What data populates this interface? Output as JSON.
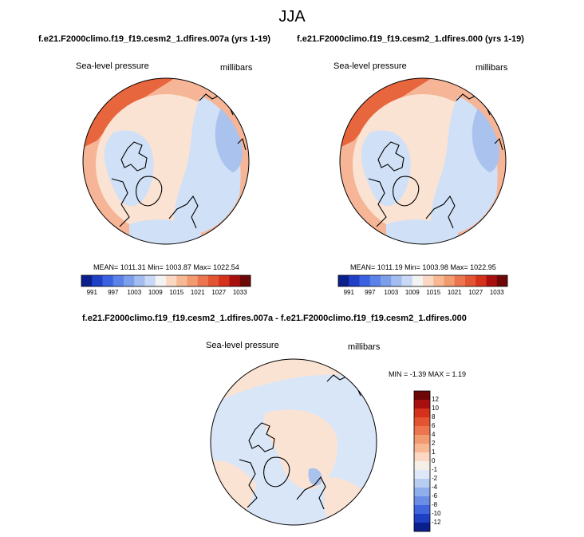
{
  "figure": {
    "title": "JJA",
    "diff_title": "f.e21.F2000climo.f19_f19.cesm2_1.dfires.007a - f.e21.F2000climo.f19_f19.cesm2_1.dfires.000"
  },
  "panels": [
    {
      "case": "f.e21.F2000climo.f19_f19.cesm2_1.dfires.007a (yrs 1-19)",
      "variable": "Sea-level pressure",
      "units": "millibars",
      "stats": "MEAN= 1011.31  Min= 1003.87  Max= 1022.54"
    },
    {
      "case": "f.e21.F2000climo.f19_f19.cesm2_1.dfires.000 (yrs 1-19)",
      "variable": "Sea-level pressure",
      "units": "millibars",
      "stats": "MEAN= 1011.19  Min= 1003.98  Max= 1022.95"
    },
    {
      "variable": "Sea-level pressure",
      "units": "millibars",
      "stats": "MIN =  -1.39 MAX =   1.19"
    }
  ],
  "colorbars": {
    "abs_ticks": [
      "991",
      "997",
      "1003",
      "1009",
      "1015",
      "1021",
      "1027",
      "1033"
    ],
    "abs_colors": [
      "#0a1e8c",
      "#1f3fc4",
      "#3a62e0",
      "#5a82e8",
      "#7d9fea",
      "#a3bdf0",
      "#c8d8f6",
      "#f3f3f3",
      "#fbd8c4",
      "#f8b894",
      "#f29a70",
      "#ec7550",
      "#e35432",
      "#d4301c",
      "#a81010",
      "#6e0808"
    ],
    "diff_ticks": [
      "12",
      "10",
      "8",
      "6",
      "4",
      "2",
      "1",
      "0",
      "-1",
      "-2",
      "-4",
      "-6",
      "-8",
      "-10",
      "-12"
    ],
    "diff_colors": [
      "#6e0808",
      "#a81010",
      "#d4301c",
      "#e35432",
      "#ec7550",
      "#f29a70",
      "#f8b894",
      "#fbd8c4",
      "#f6efe8",
      "#dfe8f8",
      "#b8cdf2",
      "#8eaeec",
      "#6a8ee6",
      "#3f66dc",
      "#1f3fc4",
      "#0a1e8c"
    ]
  },
  "map_colors": {
    "high": "#e8663e",
    "mid_high": "#f6b596",
    "near": "#fbe3d3",
    "low": "#cfe0f7",
    "lower": "#a9c3ee",
    "diff_pos": "#fbe3d3",
    "diff_neg": "#d9e6f8",
    "diff_neg2": "#a9c3ee"
  }
}
